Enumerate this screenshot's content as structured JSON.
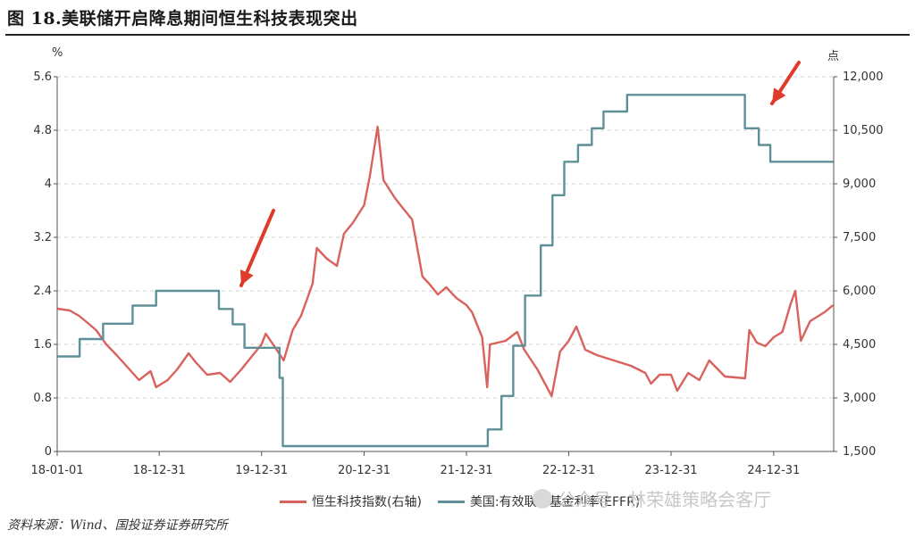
{
  "title": "图 18.美联储开启降息期间恒生科技表现突出",
  "source": "资料来源：Wind、国投证券证券研究所",
  "watermark": "公众号 · 林荣雄策略会客厅",
  "colors": {
    "hstech": "#d9625e",
    "effr": "#5f9098",
    "arrow": "#e03a2a"
  },
  "chart_data": {
    "type": "line",
    "left_unit": "%",
    "right_unit": "点",
    "x_ticks": [
      "18-01-01",
      "18-12-31",
      "19-12-31",
      "20-12-31",
      "21-12-31",
      "22-12-31",
      "23-12-31",
      "24-12-31"
    ],
    "left_axis": {
      "range": [
        0,
        5.6
      ],
      "ticks": [
        "0",
        "0.8",
        "1.6",
        "2.4",
        "3.2",
        "4",
        "4.8",
        "5.6"
      ]
    },
    "right_axis": {
      "range": [
        1500,
        12000
      ],
      "ticks": [
        "1,500",
        "3,000",
        "4,500",
        "6,000",
        "7,500",
        "9,000",
        "10,500",
        "12,000"
      ]
    },
    "grid": true,
    "legend_position": "bottom",
    "series": [
      {
        "name": "恒生科技指数(右轴)",
        "axis": "right",
        "points": [
          [
            "2018-01-02",
            5500
          ],
          [
            "2018-02-15",
            5450
          ],
          [
            "2018-03-20",
            5300
          ],
          [
            "2018-04-20",
            5100
          ],
          [
            "2018-05-20",
            4900
          ],
          [
            "2018-06-25",
            4500
          ],
          [
            "2018-08-01",
            4200
          ],
          [
            "2018-09-10",
            3850
          ],
          [
            "2018-10-20",
            3500
          ],
          [
            "2018-11-30",
            3750
          ],
          [
            "2018-12-20",
            3300
          ],
          [
            "2019-01-30",
            3500
          ],
          [
            "2019-03-05",
            3800
          ],
          [
            "2019-04-15",
            4250
          ],
          [
            "2019-05-10",
            4000
          ],
          [
            "2019-06-20",
            3650
          ],
          [
            "2019-08-05",
            3700
          ],
          [
            "2019-09-10",
            3450
          ],
          [
            "2019-10-20",
            3800
          ],
          [
            "2019-11-30",
            4200
          ],
          [
            "2019-12-31",
            4500
          ],
          [
            "2020-01-15",
            4800
          ],
          [
            "2020-02-10",
            4500
          ],
          [
            "2020-03-19",
            4050
          ],
          [
            "2020-04-20",
            4900
          ],
          [
            "2020-05-20",
            5300
          ],
          [
            "2020-06-30",
            6200
          ],
          [
            "2020-07-15",
            7200
          ],
          [
            "2020-08-20",
            6900
          ],
          [
            "2020-09-25",
            6700
          ],
          [
            "2020-10-20",
            7600
          ],
          [
            "2020-11-20",
            7900
          ],
          [
            "2020-12-31",
            8400
          ],
          [
            "2021-01-20",
            9200
          ],
          [
            "2021-02-17",
            10600
          ],
          [
            "2021-03-10",
            9100
          ],
          [
            "2021-04-20",
            8600
          ],
          [
            "2021-05-20",
            8300
          ],
          [
            "2021-06-20",
            8000
          ],
          [
            "2021-07-27",
            6400
          ],
          [
            "2021-08-20",
            6200
          ],
          [
            "2021-09-20",
            5900
          ],
          [
            "2021-10-20",
            6100
          ],
          [
            "2021-11-25",
            5800
          ],
          [
            "2021-12-31",
            5600
          ],
          [
            "2022-01-20",
            5400
          ],
          [
            "2022-02-25",
            4700
          ],
          [
            "2022-03-15",
            3300
          ],
          [
            "2022-03-25",
            4500
          ],
          [
            "2022-05-20",
            4600
          ],
          [
            "2022-06-30",
            4850
          ],
          [
            "2022-07-25",
            4350
          ],
          [
            "2022-09-10",
            3800
          ],
          [
            "2022-10-31",
            3050
          ],
          [
            "2022-11-30",
            4300
          ],
          [
            "2022-12-31",
            4600
          ],
          [
            "2023-01-27",
            5000
          ],
          [
            "2023-02-28",
            4350
          ],
          [
            "2023-04-10",
            4200
          ],
          [
            "2023-06-30",
            4000
          ],
          [
            "2023-08-10",
            3900
          ],
          [
            "2023-09-30",
            3700
          ],
          [
            "2023-10-20",
            3400
          ],
          [
            "2023-11-20",
            3650
          ],
          [
            "2023-12-31",
            3650
          ],
          [
            "2024-01-22",
            3200
          ],
          [
            "2024-03-01",
            3700
          ],
          [
            "2024-04-10",
            3500
          ],
          [
            "2024-05-15",
            4050
          ],
          [
            "2024-07-10",
            3600
          ],
          [
            "2024-09-20",
            3550
          ],
          [
            "2024-10-05",
            4900
          ],
          [
            "2024-11-01",
            4550
          ],
          [
            "2024-12-01",
            4450
          ],
          [
            "2024-12-31",
            4700
          ],
          [
            "2025-01-31",
            4850
          ],
          [
            "2025-02-28",
            5600
          ],
          [
            "2025-03-18",
            6000
          ],
          [
            "2025-04-07",
            4600
          ],
          [
            "2025-05-10",
            5150
          ],
          [
            "2025-06-30",
            5400
          ],
          [
            "2025-07-31",
            5600
          ]
        ]
      },
      {
        "name": "美国:有效联邦基金利率(EFFR)",
        "axis": "left",
        "points": [
          [
            "2018-01-02",
            1.42
          ],
          [
            "2018-03-22",
            1.68
          ],
          [
            "2018-06-14",
            1.91
          ],
          [
            "2018-09-27",
            2.18
          ],
          [
            "2018-12-20",
            2.4
          ],
          [
            "2019-08-01",
            2.13
          ],
          [
            "2019-09-19",
            1.9
          ],
          [
            "2019-10-31",
            1.55
          ],
          [
            "2020-03-04",
            1.1
          ],
          [
            "2020-03-16",
            0.08
          ],
          [
            "2021-12-31",
            0.08
          ],
          [
            "2022-03-17",
            0.33
          ],
          [
            "2022-05-05",
            0.83
          ],
          [
            "2022-06-16",
            1.58
          ],
          [
            "2022-07-28",
            2.33
          ],
          [
            "2022-09-22",
            3.08
          ],
          [
            "2022-11-03",
            3.83
          ],
          [
            "2022-12-15",
            4.33
          ],
          [
            "2023-02-02",
            4.58
          ],
          [
            "2023-03-23",
            4.83
          ],
          [
            "2023-05-04",
            5.08
          ],
          [
            "2023-07-27",
            5.33
          ],
          [
            "2024-09-19",
            4.83
          ],
          [
            "2024-11-08",
            4.58
          ],
          [
            "2024-12-19",
            4.33
          ],
          [
            "2025-07-31",
            4.33
          ]
        ]
      }
    ]
  }
}
